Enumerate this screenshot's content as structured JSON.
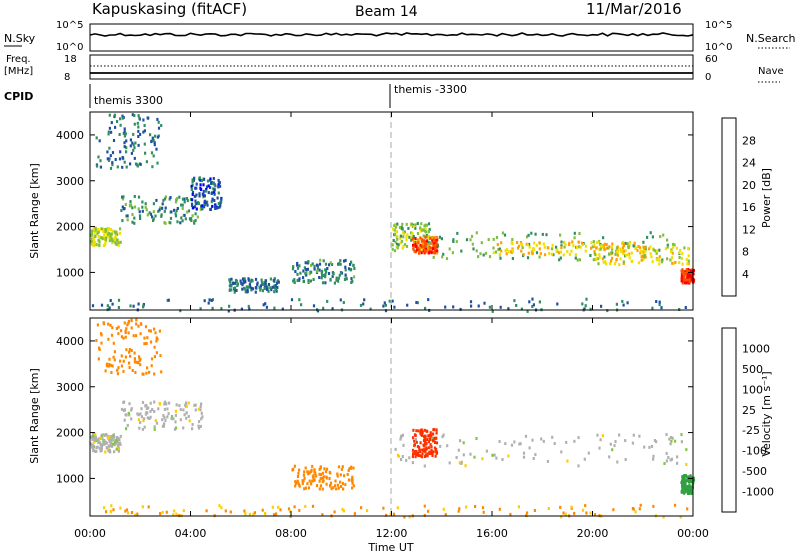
{
  "header": {
    "station": "Kapuskasing (fitACF)",
    "beam": "Beam 14",
    "date": "11/Mar/2016"
  },
  "noise_panel": {
    "left_label": "N.Sky",
    "left_ticks": [
      "10^5",
      "10^0"
    ],
    "right_ticks": [
      "10^5",
      "10^0"
    ],
    "right_label": "N.Search"
  },
  "freq_panel": {
    "left_label_1": "Freq.",
    "left_label_2": "[MHz]",
    "left_ticks": [
      "18",
      "8"
    ],
    "right_ticks": [
      "60",
      "0"
    ],
    "right_label": "Nave"
  },
  "cpid_panel": {
    "label": "CPID",
    "entries": [
      {
        "name": "themis 3300",
        "time": 0.0
      },
      {
        "name": "themis -3300",
        "time": 12.0
      }
    ]
  },
  "x_axis": {
    "ticks": [
      "00:00",
      "04:00",
      "08:00",
      "12:00",
      "16:00",
      "20:00",
      "00:00"
    ],
    "title": "Time UT"
  },
  "power_panel": {
    "ylabel": "Slant Range [km]",
    "yticks": [
      "4000",
      "3000",
      "2000",
      "1000"
    ],
    "cbar_label": "Power [dB]",
    "cbar_ticks": [
      "28",
      "24",
      "20",
      "16",
      "12",
      "8",
      "4"
    ]
  },
  "velocity_panel": {
    "ylabel": "Slant Range [km]",
    "yticks": [
      "4000",
      "3000",
      "2000",
      "1000"
    ],
    "cbar_label": "Velocity [m s⁻¹]",
    "cbar_ticks": [
      "1000",
      "500",
      "100",
      "25",
      "-25",
      "-100",
      "-500",
      "-1000"
    ]
  },
  "colors": {
    "power_scale": [
      "#0000ff",
      "#1f4fa0",
      "#2f8f5f",
      "#7fbf3f",
      "#f0e000",
      "#ff9f00",
      "#ff5000",
      "#ff0000"
    ],
    "velocity_scale": [
      "#2030c0",
      "#2060a0",
      "#30a040",
      "#80c840",
      "#c8c8c0",
      "#ffcc00",
      "#ff8800",
      "#ff3000",
      "#ff0000"
    ],
    "ground_scatter": "#b0b0b0"
  },
  "chart_data": [
    {
      "type": "heatmap",
      "title": "Power",
      "x_range_hours": [
        0,
        24
      ],
      "y_range_km": [
        180,
        4500
      ],
      "bands": [
        {
          "t": [
            0.0,
            1.2
          ],
          "r": [
            1600,
            2000
          ],
          "power": 16
        },
        {
          "t": [
            1.2,
            4.5
          ],
          "r": [
            2100,
            2700
          ],
          "power": 10
        },
        {
          "t": [
            0.2,
            2.8
          ],
          "r": [
            3300,
            4500
          ],
          "power": 8
        },
        {
          "t": [
            4.0,
            5.2
          ],
          "r": [
            2400,
            3100
          ],
          "power": 6
        },
        {
          "t": [
            5.5,
            7.5
          ],
          "r": [
            600,
            900
          ],
          "power": 8
        },
        {
          "t": [
            8.0,
            10.5
          ],
          "r": [
            800,
            1300
          ],
          "power": 9
        },
        {
          "t": [
            12.0,
            13.5
          ],
          "r": [
            1500,
            2100
          ],
          "power": 14
        },
        {
          "t": [
            12.8,
            13.8
          ],
          "r": [
            1450,
            1800
          ],
          "power": 26
        },
        {
          "t": [
            13.5,
            23.5
          ],
          "r": [
            1300,
            1900
          ],
          "power": 12
        },
        {
          "t": [
            16.0,
            22.0
          ],
          "r": [
            1400,
            1700
          ],
          "power": 20
        },
        {
          "t": [
            20.0,
            23.8
          ],
          "r": [
            1200,
            1600
          ],
          "power": 18
        },
        {
          "t": [
            23.5,
            24.0
          ],
          "r": [
            800,
            1100
          ],
          "power": 28
        },
        {
          "t": [
            0.0,
            24.0
          ],
          "r": [
            180,
            450
          ],
          "power": 8
        }
      ]
    },
    {
      "type": "heatmap",
      "title": "Velocity",
      "x_range_hours": [
        0,
        24
      ],
      "y_range_km": [
        180,
        4500
      ],
      "bands": [
        {
          "t": [
            0.0,
            1.2
          ],
          "r": [
            1600,
            2000
          ],
          "velocity": 0
        },
        {
          "t": [
            1.2,
            4.5
          ],
          "r": [
            2100,
            2700
          ],
          "velocity": 0
        },
        {
          "t": [
            0.2,
            2.8
          ],
          "r": [
            3300,
            4500
          ],
          "velocity": -200
        },
        {
          "t": [
            8.0,
            10.5
          ],
          "r": [
            800,
            1300
          ],
          "velocity": -200
        },
        {
          "t": [
            12.0,
            23.8
          ],
          "r": [
            1300,
            2000
          ],
          "velocity": 0
        },
        {
          "t": [
            12.8,
            13.8
          ],
          "r": [
            1500,
            2100
          ],
          "velocity": -600
        },
        {
          "t": [
            23.5,
            24.0
          ],
          "r": [
            700,
            1100
          ],
          "velocity": 200
        },
        {
          "t": [
            0.0,
            24.0
          ],
          "r": [
            180,
            450
          ],
          "velocity": -100
        }
      ]
    }
  ]
}
